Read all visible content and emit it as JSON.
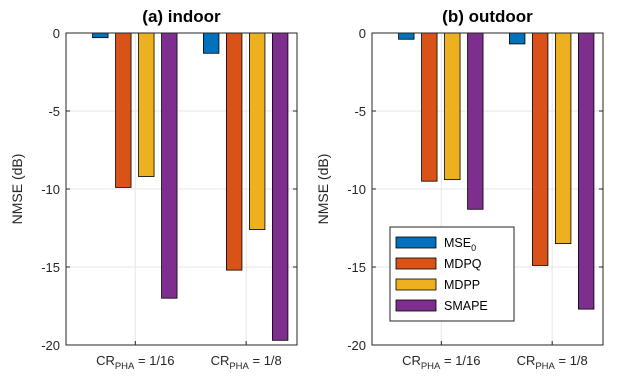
{
  "chart_data": [
    {
      "type": "bar",
      "title": "(a) indoor",
      "ylabel": "NMSE (dB)",
      "xlabel": "",
      "ylim": [
        -20,
        0
      ],
      "yticks": [
        0,
        -5,
        -10,
        -15,
        -20
      ],
      "grid": true,
      "categories": [
        {
          "main": "CR",
          "sub": "PHA",
          "rest": " = 1/16"
        },
        {
          "main": "CR",
          "sub": "PHA",
          "rest": " = 1/8"
        }
      ],
      "series": [
        {
          "name": "MSE",
          "name_sub": "0",
          "color": "#0072BD",
          "values": [
            -0.3,
            -1.3
          ]
        },
        {
          "name": "MDPQ",
          "color": "#D95319",
          "values": [
            -9.9,
            -15.2
          ]
        },
        {
          "name": "MDPP",
          "color": "#EDB120",
          "values": [
            -9.2,
            -12.6
          ]
        },
        {
          "name": "SMAPE",
          "color": "#7E2F8E",
          "values": [
            -17.0,
            -19.7
          ]
        }
      ],
      "legend": false
    },
    {
      "type": "bar",
      "title": "(b) outdoor",
      "ylabel": "NMSE (dB)",
      "xlabel": "",
      "ylim": [
        -20,
        0
      ],
      "yticks": [
        0,
        -5,
        -10,
        -15,
        -20
      ],
      "grid": true,
      "categories": [
        {
          "main": "CR",
          "sub": "PHA",
          "rest": " = 1/16"
        },
        {
          "main": "CR",
          "sub": "PHA",
          "rest": " = 1/8"
        }
      ],
      "series": [
        {
          "name": "MSE",
          "name_sub": "0",
          "color": "#0072BD",
          "values": [
            -0.4,
            -0.7
          ]
        },
        {
          "name": "MDPQ",
          "color": "#D95319",
          "values": [
            -9.5,
            -14.9
          ]
        },
        {
          "name": "MDPP",
          "color": "#EDB120",
          "values": [
            -9.4,
            -13.5
          ]
        },
        {
          "name": "SMAPE",
          "color": "#7E2F8E",
          "values": [
            -11.3,
            -17.7
          ]
        }
      ],
      "legend": true,
      "legend_position": "bottom-left"
    }
  ]
}
